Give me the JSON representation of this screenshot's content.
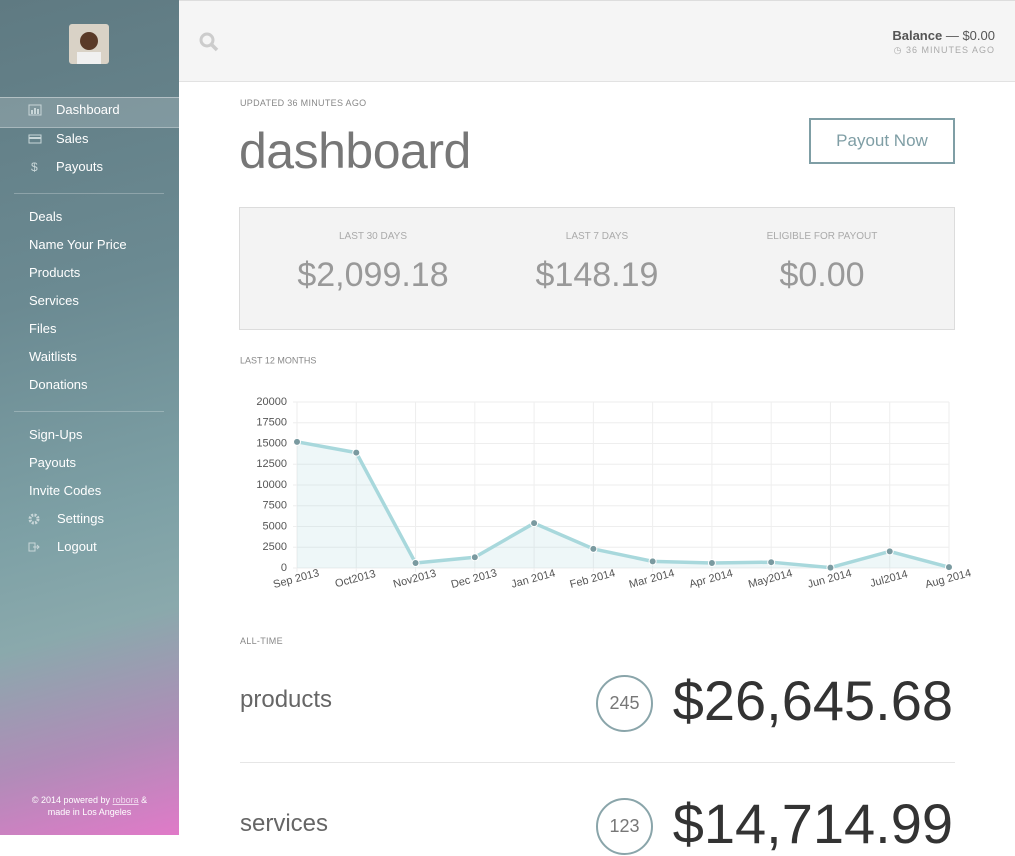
{
  "sidebar": {
    "nav_primary": [
      "Dashboard",
      "Sales",
      "Payouts"
    ],
    "nav_secondary": [
      "Deals",
      "Name Your Price",
      "Products",
      "Services",
      "Files",
      "Waitlists",
      "Donations"
    ],
    "nav_admin": [
      "Sign-Ups",
      "Payouts",
      "Invite Codes",
      "Settings",
      "Logout"
    ],
    "footer": {
      "text": "© 2014 powered by",
      "link": "robora",
      "amp": "&",
      "line2": "made in Los Angeles"
    }
  },
  "topbar": {
    "balance_label": "Balance",
    "balance_value": "— $0.00",
    "updated": "36 MINUTES AGO"
  },
  "header": {
    "updated": "UPDATED 36 MINUTES AGO",
    "title": "dashboard",
    "button": "Payout Now"
  },
  "stats": [
    {
      "label": "LAST 30 DAYS",
      "value": "$2,099.18"
    },
    {
      "label": "LAST 7 DAYS",
      "value": "$148.19"
    },
    {
      "label": "ELIGIBLE FOR PAYOUT",
      "value": "$0.00"
    }
  ],
  "chart_data": {
    "type": "line",
    "title": "LAST 12 MONTHS",
    "categories": [
      "Sep 2013",
      "Oct2013",
      "Nov2013",
      "Dec 2013",
      "Jan 2014",
      "Feb 2014",
      "Mar 2014",
      "Apr 2014",
      "May2014",
      "Jun 2014",
      "Jul2014",
      "Aug 2014"
    ],
    "values": [
      15200,
      13900,
      600,
      1300,
      5400,
      2300,
      800,
      600,
      700,
      50,
      2000,
      100
    ],
    "color": "#a8d8dc",
    "ylim": [
      0,
      20000
    ],
    "yticks": [
      0,
      2500,
      5000,
      7500,
      10000,
      12500,
      15000,
      17500,
      20000
    ],
    "grid": true
  },
  "alltime": {
    "label": "ALL-TIME",
    "items": [
      {
        "name": "products",
        "count": "245",
        "total": "$26,645.68"
      },
      {
        "name": "services",
        "count": "123",
        "total": "$14,714.99"
      }
    ]
  }
}
